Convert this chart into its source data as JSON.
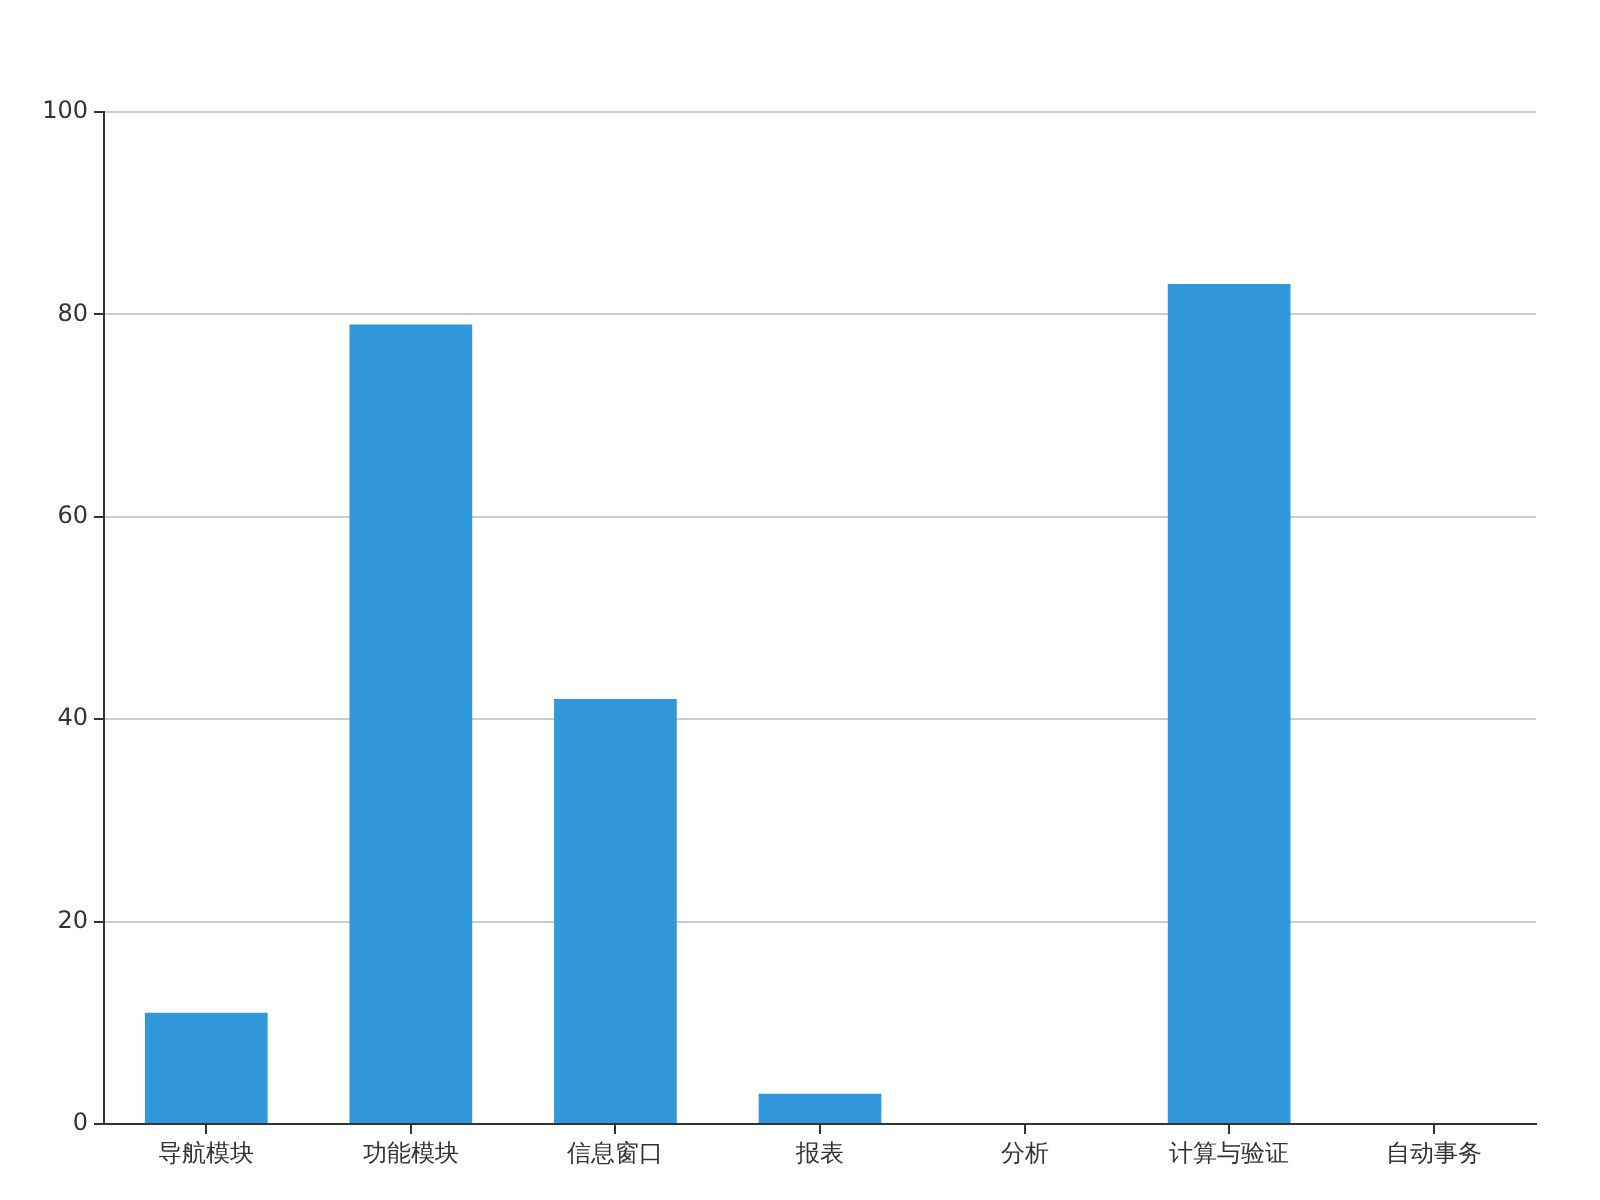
{
  "chart_data": {
    "type": "bar",
    "categories": [
      "导航模块",
      "功能模块",
      "信息窗口",
      "报表",
      "分析",
      "计算与验证",
      "自动事务"
    ],
    "values": [
      11,
      79,
      42,
      3,
      0,
      83,
      0
    ],
    "color": "#3398db",
    "ylim": [
      0,
      100
    ],
    "yticks": [
      0,
      20,
      40,
      60,
      80,
      100
    ],
    "grid": "y",
    "legend": false
  }
}
